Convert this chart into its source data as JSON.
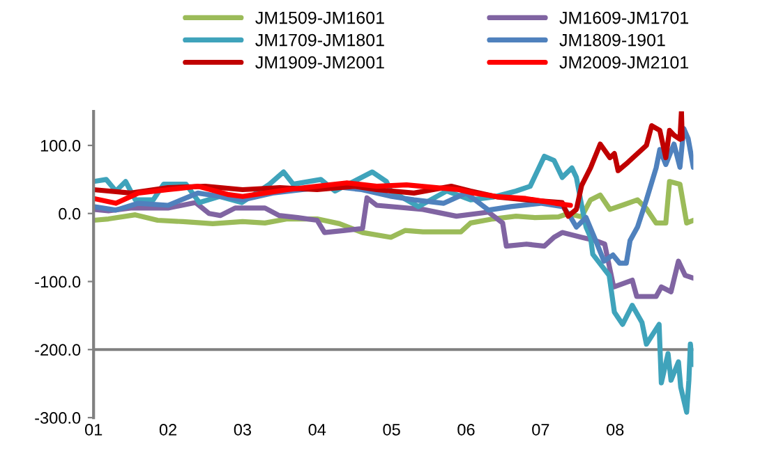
{
  "chart_data": {
    "type": "line",
    "legend": "top",
    "grid": false,
    "xlim": [
      1,
      9.05
    ],
    "xticks": [
      {
        "value": 1,
        "label": "01"
      },
      {
        "value": 2,
        "label": "02"
      },
      {
        "value": 3,
        "label": "03"
      },
      {
        "value": 4,
        "label": "04"
      },
      {
        "value": 5,
        "label": "05"
      },
      {
        "value": 6,
        "label": "06"
      },
      {
        "value": 7,
        "label": "07"
      },
      {
        "value": 8,
        "label": "08"
      }
    ],
    "ylim": [
      -300,
      150
    ],
    "yticks": [
      {
        "value": -300,
        "label": "-300.0"
      },
      {
        "value": -200,
        "label": "-200.0"
      },
      {
        "value": -100,
        "label": "-100.0"
      },
      {
        "value": 0,
        "label": "0.0"
      },
      {
        "value": 100,
        "label": "100.0"
      }
    ],
    "ref_lines": [
      {
        "axis": "y",
        "value": -200,
        "color": "#808080"
      }
    ],
    "series": [
      {
        "name": "JM1509-JM1601",
        "color": "#9bbb59",
        "x": [
          1.0,
          1.2,
          1.56,
          1.86,
          2.2,
          2.6,
          3.0,
          3.3,
          3.6,
          4.0,
          4.3,
          4.61,
          4.99,
          5.18,
          5.42,
          5.93,
          6.06,
          6.36,
          6.67,
          6.92,
          7.24,
          7.37,
          7.48,
          7.55,
          7.67,
          7.8,
          7.93,
          8.12,
          8.3,
          8.42,
          8.55,
          8.68,
          8.73,
          8.87,
          8.96,
          9.05
        ],
        "values": [
          -10,
          -8,
          -2,
          -10,
          -12,
          -15,
          -12,
          -14,
          -8,
          -8,
          -15,
          -28,
          -35,
          -25,
          -27,
          -27,
          -14,
          -8,
          -4,
          -6,
          -5,
          0,
          -3,
          -5,
          20,
          27,
          6,
          13,
          20,
          7,
          -14,
          -14,
          47,
          43,
          -14,
          -10
        ]
      },
      {
        "name": "JM1609-JM1701",
        "color": "#8064a2",
        "x": [
          1.0,
          1.2,
          1.5,
          2.0,
          2.37,
          2.55,
          2.7,
          2.9,
          3.3,
          3.49,
          3.74,
          4.0,
          4.1,
          4.37,
          4.61,
          4.67,
          4.8,
          5.42,
          5.87,
          6.3,
          6.49,
          6.54,
          6.81,
          7.05,
          7.18,
          7.29,
          7.55,
          7.74,
          7.86,
          7.98,
          8.23,
          8.29,
          8.55,
          8.62,
          8.75,
          8.85,
          8.94,
          9.05
        ],
        "values": [
          6,
          4,
          8,
          8,
          16,
          0,
          -3,
          8,
          8,
          -3,
          -6,
          -10,
          -28,
          -25,
          -22,
          23,
          12,
          6,
          -4,
          2,
          -14,
          -48,
          -45,
          -48,
          -35,
          -28,
          -35,
          -40,
          -45,
          -108,
          -98,
          -122,
          -122,
          -108,
          -115,
          -70,
          -91,
          -95
        ]
      },
      {
        "name": "JM1709-JM1801",
        "color": "#3fa3bb",
        "x": [
          1.0,
          1.17,
          1.3,
          1.43,
          1.56,
          1.8,
          1.94,
          2.24,
          2.42,
          2.69,
          2.99,
          3.36,
          3.55,
          3.68,
          4.05,
          4.24,
          4.74,
          4.93,
          4.99,
          5.36,
          5.74,
          6.06,
          6.36,
          6.67,
          6.86,
          7.05,
          7.18,
          7.29,
          7.42,
          7.48,
          7.55,
          7.61,
          7.67,
          7.7,
          7.92,
          7.99,
          8.1,
          8.23,
          8.36,
          8.42,
          8.59,
          8.62,
          8.71,
          8.75,
          8.85,
          8.88,
          8.96,
          8.99,
          9.01,
          9.05
        ],
        "values": [
          47,
          50,
          33,
          47,
          20,
          20,
          43,
          43,
          16,
          25,
          16,
          43,
          61,
          43,
          50,
          33,
          61,
          47,
          33,
          10,
          33,
          20,
          24,
          33,
          40,
          84,
          78,
          53,
          67,
          53,
          12,
          -20,
          -35,
          -60,
          -91,
          -145,
          -163,
          -135,
          -160,
          -192,
          -163,
          -249,
          -206,
          -245,
          -218,
          -255,
          -292,
          -245,
          -192,
          -222
        ]
      },
      {
        "name": "JM1809-1901",
        "color": "#4f81bd",
        "x": [
          1.0,
          1.3,
          1.6,
          2.0,
          2.4,
          2.7,
          3.0,
          3.4,
          3.8,
          4.2,
          4.6,
          5.0,
          5.3,
          5.7,
          6.0,
          6.3,
          6.6,
          7.0,
          7.3,
          7.4,
          7.48,
          7.61,
          7.74,
          7.85,
          7.97,
          8.06,
          8.15,
          8.2,
          8.3,
          8.42,
          8.55,
          8.6,
          8.68,
          8.79,
          8.87,
          8.92,
          8.98,
          9.05
        ],
        "values": [
          10,
          5,
          15,
          12,
          30,
          25,
          20,
          30,
          35,
          40,
          35,
          25,
          20,
          15,
          30,
          5,
          10,
          15,
          10,
          -5,
          -20,
          -6,
          -40,
          -70,
          -61,
          -73,
          -73,
          -40,
          -20,
          20,
          67,
          94,
          72,
          102,
          68,
          125,
          110,
          68
        ]
      },
      {
        "name": "JM1909-JM2001",
        "color": "#c00000",
        "x": [
          1.0,
          1.5,
          2.0,
          2.5,
          3.0,
          3.5,
          4.0,
          4.5,
          4.8,
          5.3,
          5.8,
          6.06,
          6.43,
          6.81,
          7.29,
          7.37,
          7.48,
          7.55,
          7.67,
          7.8,
          7.93,
          7.99,
          8.04,
          8.17,
          8.3,
          8.42,
          8.49,
          8.6,
          8.68,
          8.73,
          8.79,
          8.87,
          8.89,
          8.9
        ],
        "values": [
          35,
          30,
          38,
          40,
          35,
          38,
          35,
          40,
          35,
          30,
          40,
          33,
          24,
          20,
          16,
          -4,
          6,
          41,
          67,
          102,
          82,
          88,
          63,
          75,
          88,
          100,
          129,
          122,
          82,
          122,
          115,
          109,
          150,
          110
        ]
      },
      {
        "name": "JM2009-JM2101",
        "color": "#ff0000",
        "x": [
          1.0,
          1.3,
          1.6,
          2.0,
          2.4,
          2.8,
          3.0,
          3.3,
          3.6,
          4.0,
          4.4,
          4.8,
          5.2,
          5.6,
          5.9,
          6.1,
          6.4,
          6.8,
          7.2,
          7.4
        ],
        "values": [
          22,
          15,
          30,
          35,
          40,
          28,
          25,
          30,
          35,
          40,
          45,
          40,
          42,
          38,
          35,
          30,
          25,
          22,
          15,
          12
        ]
      }
    ]
  }
}
